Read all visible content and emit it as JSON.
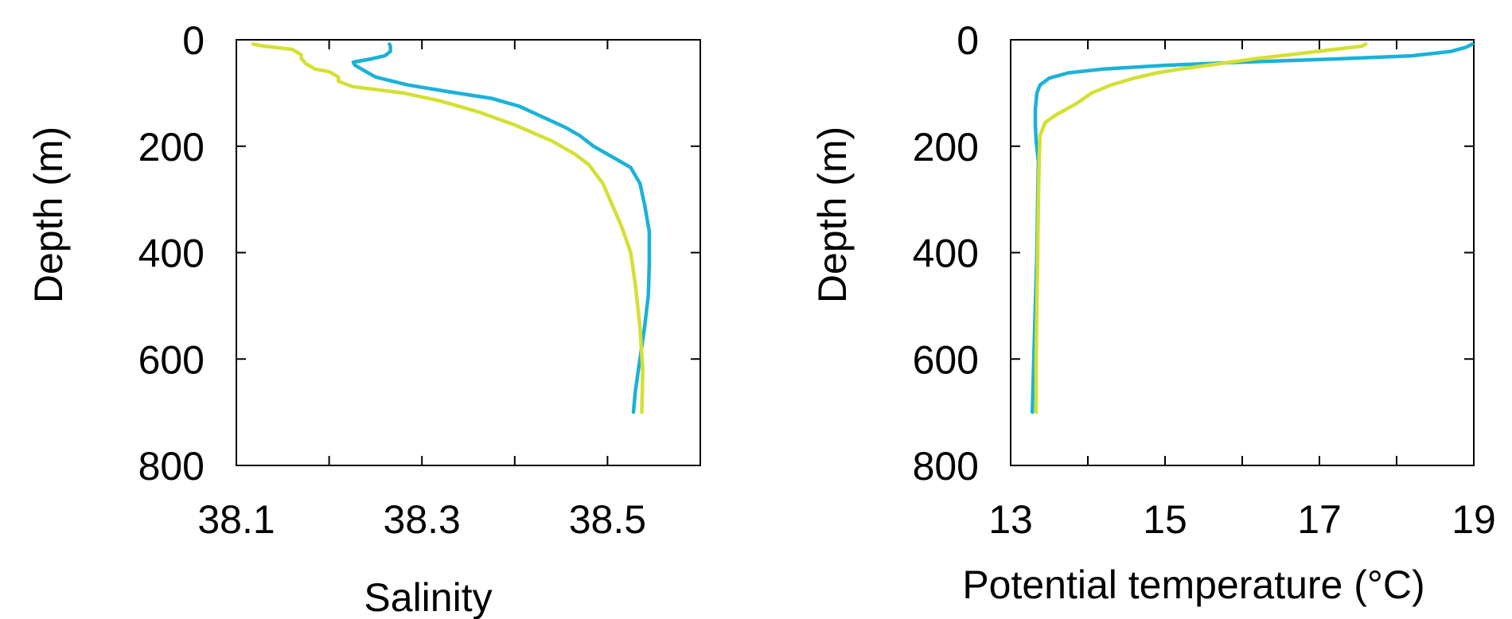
{
  "chart_data": [
    {
      "type": "line",
      "xlabel": "Salinity",
      "ylabel": "Depth (m)",
      "xlim": [
        38.1,
        38.6
      ],
      "ylim": [
        800,
        0
      ],
      "xticks": [
        38.1,
        38.2,
        38.3,
        38.4,
        38.5,
        38.6
      ],
      "xtick_labels": [
        "38.1",
        "",
        "38.3",
        "",
        "38.5",
        ""
      ],
      "yticks": [
        0,
        200,
        400,
        600,
        800
      ],
      "ytick_labels": [
        "0",
        "200",
        "400",
        "600",
        "800"
      ],
      "grid": false,
      "series": [
        {
          "color": "#1ab2d8",
          "points": [
            [
              38.265,
              8
            ],
            [
              38.266,
              12
            ],
            [
              38.266,
              22
            ],
            [
              38.26,
              30
            ],
            [
              38.245,
              36
            ],
            [
              38.226,
              42
            ],
            [
              38.228,
              48
            ],
            [
              38.238,
              58
            ],
            [
              38.25,
              70
            ],
            [
              38.285,
              85
            ],
            [
              38.33,
              98
            ],
            [
              38.375,
              110
            ],
            [
              38.405,
              125
            ],
            [
              38.43,
              145
            ],
            [
              38.455,
              165
            ],
            [
              38.47,
              180
            ],
            [
              38.485,
              200
            ],
            [
              38.505,
              220
            ],
            [
              38.525,
              240
            ],
            [
              38.535,
              270
            ],
            [
              38.54,
              310
            ],
            [
              38.545,
              360
            ],
            [
              38.545,
              420
            ],
            [
              38.544,
              480
            ],
            [
              38.54,
              540
            ],
            [
              38.535,
              600
            ],
            [
              38.53,
              660
            ],
            [
              38.528,
              700
            ]
          ]
        },
        {
          "color": "#d4e033",
          "points": [
            [
              38.118,
              8
            ],
            [
              38.13,
              12
            ],
            [
              38.16,
              18
            ],
            [
              38.17,
              28
            ],
            [
              38.17,
              35
            ],
            [
              38.175,
              45
            ],
            [
              38.185,
              55
            ],
            [
              38.2,
              60
            ],
            [
              38.21,
              70
            ],
            [
              38.21,
              78
            ],
            [
              38.225,
              88
            ],
            [
              38.28,
              100
            ],
            [
              38.32,
              115
            ],
            [
              38.36,
              135
            ],
            [
              38.4,
              160
            ],
            [
              38.44,
              190
            ],
            [
              38.465,
              215
            ],
            [
              38.48,
              235
            ],
            [
              38.495,
              270
            ],
            [
              38.505,
              310
            ],
            [
              38.515,
              350
            ],
            [
              38.525,
              400
            ],
            [
              38.53,
              460
            ],
            [
              38.535,
              540
            ],
            [
              38.538,
              620
            ],
            [
              38.537,
              700
            ]
          ]
        }
      ]
    },
    {
      "type": "line",
      "xlabel": "Potential temperature (°C)",
      "ylabel": "Depth (m)",
      "xlim": [
        13,
        19
      ],
      "ylim": [
        800,
        0
      ],
      "xticks": [
        13,
        14,
        15,
        16,
        17,
        18,
        19
      ],
      "xtick_labels": [
        "13",
        "",
        "15",
        "",
        "17",
        "",
        "19"
      ],
      "yticks": [
        0,
        200,
        400,
        600,
        800
      ],
      "ytick_labels": [
        "0",
        "200",
        "400",
        "600",
        "800"
      ],
      "grid": false,
      "series": [
        {
          "color": "#1ab2d8",
          "points": [
            [
              18.98,
              8
            ],
            [
              18.9,
              14
            ],
            [
              18.7,
              22
            ],
            [
              18.2,
              30
            ],
            [
              17.2,
              36
            ],
            [
              16.0,
              42
            ],
            [
              15.0,
              48
            ],
            [
              14.2,
              55
            ],
            [
              13.75,
              62
            ],
            [
              13.5,
              72
            ],
            [
              13.38,
              85
            ],
            [
              13.34,
              100
            ],
            [
              13.32,
              130
            ],
            [
              13.32,
              160
            ],
            [
              13.33,
              190
            ],
            [
              13.36,
              230
            ],
            [
              13.35,
              300
            ],
            [
              13.34,
              400
            ],
            [
              13.32,
              500
            ],
            [
              13.3,
              600
            ],
            [
              13.28,
              700
            ]
          ]
        },
        {
          "color": "#d4e033",
          "points": [
            [
              17.6,
              8
            ],
            [
              17.55,
              12
            ],
            [
              17.2,
              18
            ],
            [
              16.8,
              25
            ],
            [
              16.2,
              35
            ],
            [
              15.7,
              45
            ],
            [
              15.2,
              55
            ],
            [
              14.9,
              62
            ],
            [
              14.6,
              72
            ],
            [
              14.3,
              85
            ],
            [
              14.05,
              100
            ],
            [
              13.85,
              120
            ],
            [
              13.6,
              140
            ],
            [
              13.45,
              155
            ],
            [
              13.38,
              180
            ],
            [
              13.37,
              220
            ],
            [
              13.36,
              300
            ],
            [
              13.35,
              400
            ],
            [
              13.34,
              500
            ],
            [
              13.33,
              600
            ],
            [
              13.33,
              700
            ]
          ]
        }
      ]
    }
  ]
}
